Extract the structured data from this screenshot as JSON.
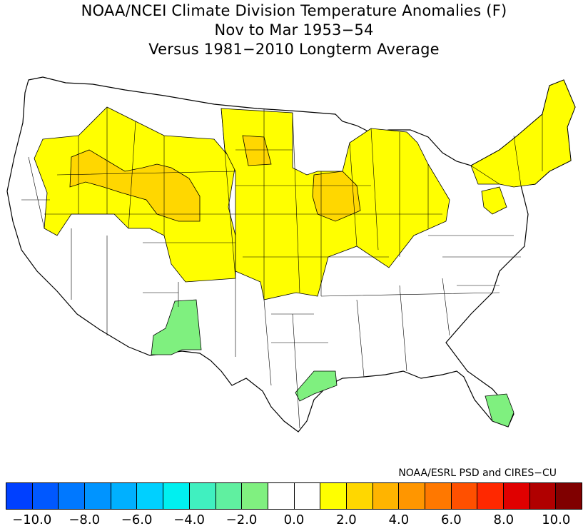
{
  "title": {
    "line1": "NOAA/NCEI Climate Division Temperature Anomalies (F)",
    "line2": "Nov to Mar 1953−54",
    "line3": "Versus 1981−2010 Longterm Average"
  },
  "credit": "NOAA/ESRL PSD and CIRES−CU",
  "map": {
    "region": "contiguous-united-states",
    "border_color": "#000000",
    "unshaded_color": "#ffffff",
    "anomaly_regions": [
      {
        "area": "northern-plains-and-midwest",
        "anomaly_range": "0 to 1",
        "color": "#ffff00"
      },
      {
        "area": "central-plains-and-corn-belt",
        "anomaly_range": "0 to 1",
        "color": "#ffff00"
      },
      {
        "area": "northern-rockies-and-great-basin",
        "anomaly_range": "0 to 1",
        "color": "#ffff00"
      },
      {
        "area": "new-england-and-new-york",
        "anomaly_range": "0 to 1",
        "color": "#ffff00"
      },
      {
        "area": "pennsylvania",
        "anomaly_range": "0 to 1",
        "color": "#ffff00"
      },
      {
        "area": "idaho-and-wyoming",
        "anomaly_range": "1 to 2",
        "color": "#ffd700"
      },
      {
        "area": "central-north-dakota",
        "anomaly_range": "1 to 2",
        "color": "#ffd700"
      },
      {
        "area": "iowa",
        "anomaly_range": "1 to 2",
        "color": "#ffd700"
      },
      {
        "area": "southern-arizona-and-new-mexico",
        "anomaly_range": "-1 to -2",
        "color": "#7ff07f"
      },
      {
        "area": "texas-upper-gulf-coast",
        "anomaly_range": "-1 to -2",
        "color": "#7ff07f"
      },
      {
        "area": "south-florida",
        "anomaly_range": "-1 to -2",
        "color": "#7ff07f"
      }
    ]
  },
  "colorbar": {
    "colors": [
      "#0040ff",
      "#0058ff",
      "#0078ff",
      "#0094ff",
      "#00b0ff",
      "#00d0ff",
      "#00f0f0",
      "#40f0c0",
      "#60f0a0",
      "#80f080",
      "#ffffff",
      "#ffffff",
      "#ffff00",
      "#ffd700",
      "#ffb400",
      "#ff9600",
      "#ff7800",
      "#ff5000",
      "#ff2800",
      "#e00000",
      "#b00000",
      "#800000"
    ],
    "tick_labels": [
      "−10.0",
      "−8.0",
      "−6.0",
      "−4.0",
      "−2.0",
      "0.0",
      "2.0",
      "4.0",
      "6.0",
      "8.0",
      "10.0"
    ]
  }
}
